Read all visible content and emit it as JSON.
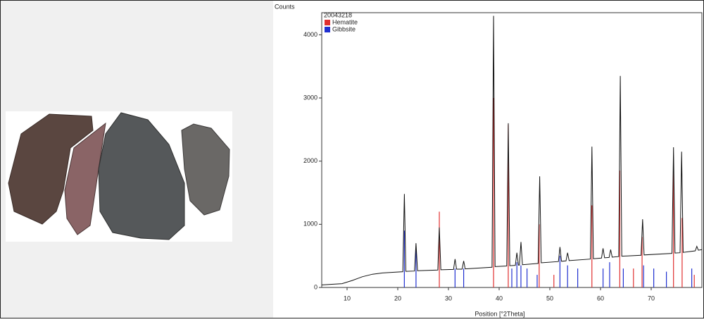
{
  "chart_data": {
    "type": "line",
    "y_label": "Counts",
    "x_label": "Position [°2Theta]",
    "xlim": [
      5,
      80
    ],
    "xticks": [
      10,
      20,
      30,
      40,
      50,
      60,
      70
    ],
    "ylim": [
      0,
      4350
    ],
    "yticks": [
      0,
      1000,
      2000,
      3000,
      4000
    ],
    "series": [
      {
        "name": "20043218",
        "color": "#111111",
        "style": "line",
        "x": [
          5,
          7,
          9,
          11,
          13,
          15,
          17,
          19,
          21,
          21.3,
          21.6,
          23.3,
          23.6,
          23.9,
          27.9,
          28.2,
          28.5,
          31,
          31.3,
          31.6,
          32.7,
          33,
          33.3,
          38.6,
          38.9,
          39.2,
          41.5,
          41.8,
          42.1,
          43.2,
          43.5,
          43.8,
          44,
          44.3,
          44.6,
          47.7,
          48,
          48.3,
          51.7,
          52,
          52.3,
          53.2,
          53.5,
          53.8,
          58,
          58.3,
          58.6,
          60.2,
          60.5,
          60.8,
          61.7,
          62,
          62.3,
          63.6,
          63.9,
          64.2,
          68,
          68.3,
          68.6,
          74.1,
          74.4,
          74.7,
          75.7,
          76,
          76.3,
          78.7,
          79,
          79.3,
          80
        ],
        "values": [
          40,
          50,
          60,
          110,
          170,
          210,
          230,
          240,
          250,
          1480,
          255,
          260,
          700,
          265,
          275,
          950,
          280,
          285,
          450,
          290,
          290,
          420,
          295,
          320,
          4300,
          330,
          340,
          2600,
          345,
          350,
          550,
          355,
          355,
          720,
          360,
          380,
          1760,
          390,
          410,
          640,
          415,
          420,
          550,
          425,
          450,
          2230,
          455,
          465,
          620,
          470,
          475,
          600,
          480,
          490,
          3350,
          495,
          510,
          1080,
          515,
          540,
          2220,
          545,
          550,
          2150,
          555,
          580,
          650,
          590,
          600
        ]
      },
      {
        "name": "Hematite",
        "color": "#e03030",
        "style": "stick",
        "x": [
          28.2,
          38.9,
          41.8,
          47.9,
          50.8,
          58.3,
          63.8,
          66.5,
          68.2,
          74.4,
          76.1,
          78.5
        ],
        "values": [
          1200,
          3000,
          2580,
          1000,
          200,
          1300,
          1850,
          300,
          800,
          1900,
          1100,
          200
        ]
      },
      {
        "name": "Gibbsite",
        "color": "#2030d0",
        "style": "stick",
        "x": [
          21.3,
          23.6,
          31.3,
          33,
          42.5,
          43.5,
          44.3,
          45.5,
          47.5,
          52,
          53.5,
          55.5,
          60.5,
          61.8,
          64.5,
          68.5,
          70.5,
          73,
          78
        ],
        "values": [
          900,
          600,
          300,
          300,
          300,
          400,
          350,
          300,
          200,
          500,
          350,
          300,
          300,
          400,
          300,
          350,
          300,
          250,
          300
        ]
      }
    ]
  }
}
